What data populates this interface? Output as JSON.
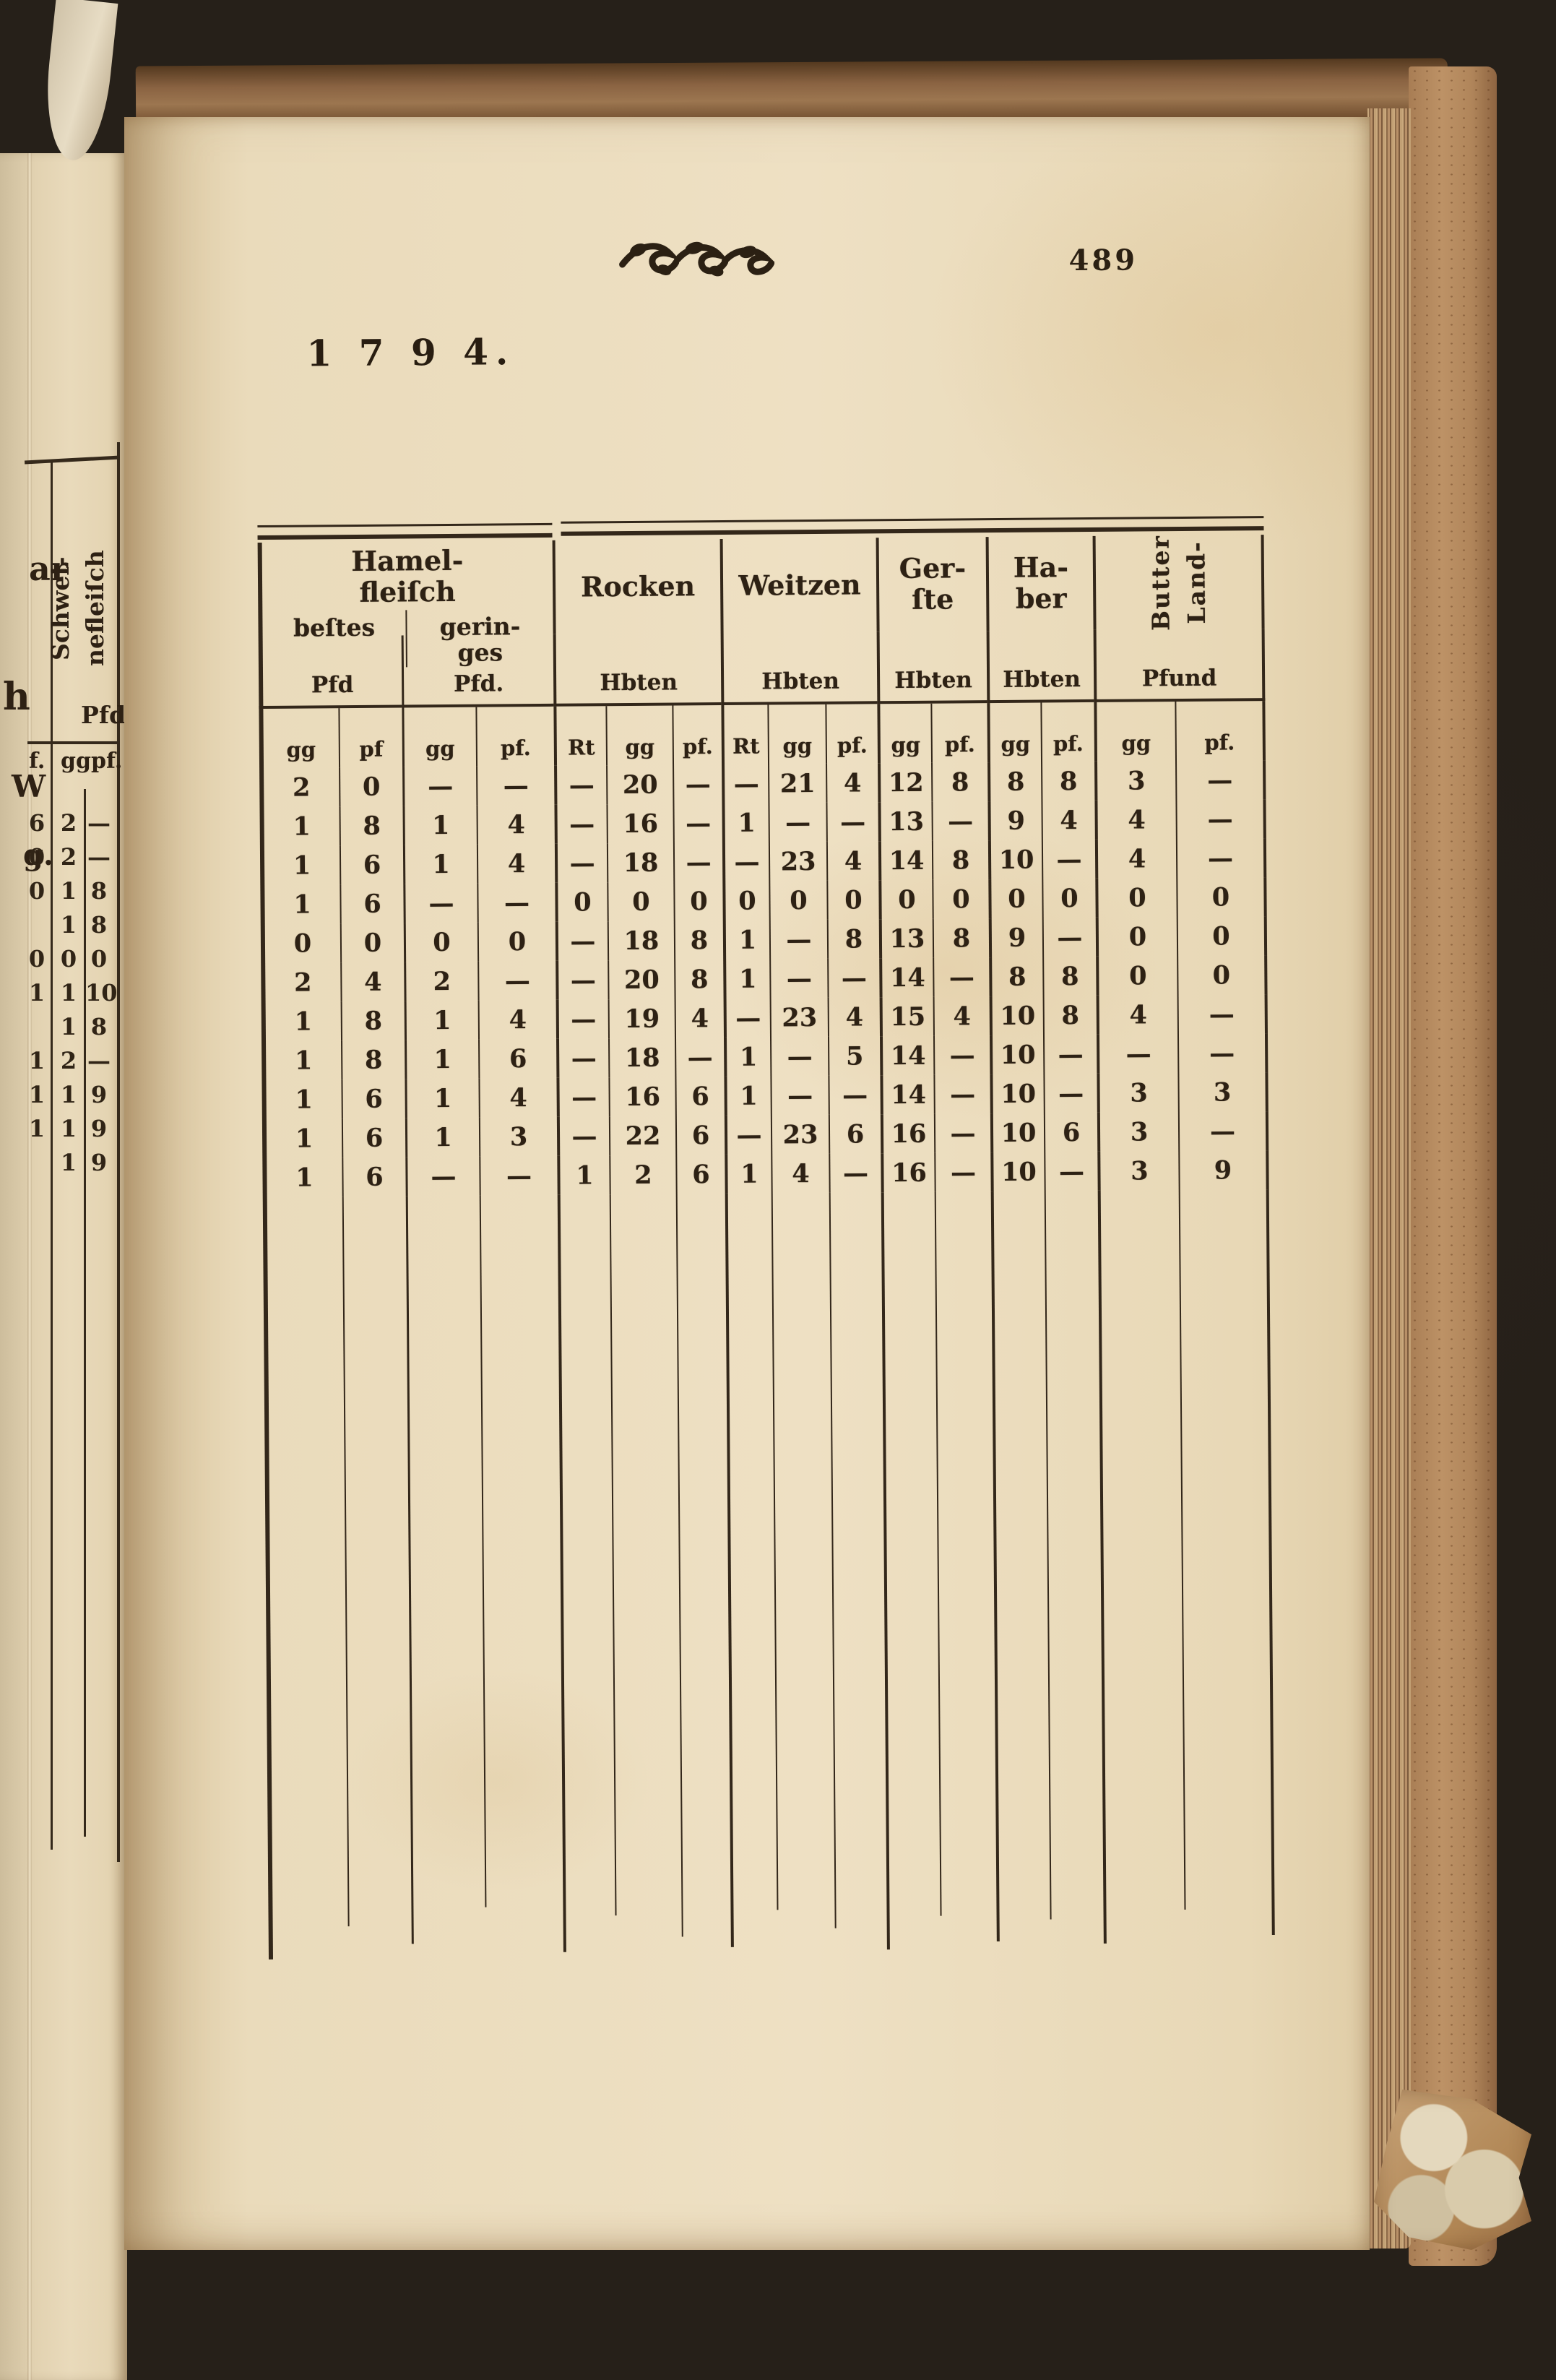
{
  "page": {
    "number": "489",
    "year": "1 7 9 4."
  },
  "ornament": {
    "name": "floral-vignette"
  },
  "colors": {
    "paper": "#eadbbb",
    "ink": "#2d2114",
    "cover": "#8a6342",
    "background": "#262019"
  },
  "table": {
    "groups": [
      {
        "label_lines": [
          "Hamel-",
          "fleiſch"
        ],
        "subgroups": [
          {
            "label_lines": [
              "beſtes"
            ],
            "unit": "Pfd",
            "cols": [
              "gg",
              "pf"
            ]
          },
          {
            "label_lines": [
              "gerin-",
              "ges"
            ],
            "unit": "Pfd.",
            "cols": [
              "gg",
              "pf."
            ]
          }
        ]
      },
      {
        "label_lines": [
          "Rocken"
        ],
        "unit": "Hbten",
        "cols": [
          "Rt",
          "gg",
          "pf."
        ]
      },
      {
        "label_lines": [
          "Weitzen"
        ],
        "unit": "Hbten",
        "cols": [
          "Rt",
          "gg",
          "pf."
        ]
      },
      {
        "label_lines": [
          "Ger-",
          "ſte"
        ],
        "unit": "Hbten",
        "cols": [
          "gg",
          "pf."
        ]
      },
      {
        "label_lines": [
          "Ha-",
          "ber"
        ],
        "unit": "Hbten",
        "cols": [
          "gg",
          "pf."
        ]
      },
      {
        "label_lines": [
          "Land-",
          "Butter"
        ],
        "rotated": true,
        "unit": "Pfund",
        "cols": [
          "gg",
          "pf."
        ]
      }
    ],
    "units_row": [
      "Pfd",
      "Pfd.",
      "Hbten",
      "Hbten",
      "Hbten",
      "Hbten",
      "Pfund"
    ],
    "subcols": [
      "gg",
      "pf",
      "gg",
      "pf.",
      "Rt",
      "gg",
      "pf.",
      "Rt",
      "gg",
      "pf.",
      "gg",
      "pf.",
      "gg",
      "pf.",
      "gg",
      "pf."
    ],
    "rows": [
      [
        "2",
        "0",
        "—",
        "—",
        "—",
        "20",
        "—",
        "—",
        "21",
        "4",
        "12",
        "8",
        "8",
        "8",
        "3",
        "—"
      ],
      [
        "1",
        "8",
        "1",
        "4",
        "—",
        "16",
        "—",
        "1",
        "—",
        "—",
        "13",
        "—",
        "9",
        "4",
        "4",
        "—"
      ],
      [
        "1",
        "6",
        "1",
        "4",
        "—",
        "18",
        "—",
        "—",
        "23",
        "4",
        "14",
        "8",
        "10",
        "—",
        "4",
        "—"
      ],
      [
        "1",
        "6",
        "—",
        "—",
        "0",
        "0",
        "0",
        "0",
        "0",
        "0",
        "0",
        "0",
        "0",
        "0",
        "0",
        "0"
      ],
      [
        "0",
        "0",
        "0",
        "0",
        "—",
        "18",
        "8",
        "1",
        "—",
        "8",
        "13",
        "8",
        "9",
        "—",
        "0",
        "0"
      ],
      [
        "2",
        "4",
        "2",
        "—",
        "—",
        "20",
        "8",
        "1",
        "—",
        "—",
        "14",
        "—",
        "8",
        "8",
        "0",
        "0"
      ],
      [
        "1",
        "8",
        "1",
        "4",
        "—",
        "19",
        "4",
        "—",
        "23",
        "4",
        "15",
        "4",
        "10",
        "8",
        "4",
        "—"
      ],
      [
        "1",
        "8",
        "1",
        "6",
        "—",
        "18",
        "—",
        "1",
        "—",
        "5",
        "14",
        "—",
        "10",
        "—",
        "—",
        "—"
      ],
      [
        "1",
        "6",
        "1",
        "4",
        "—",
        "16",
        "6",
        "1",
        "—",
        "—",
        "14",
        "—",
        "10",
        "—",
        "3",
        "3"
      ],
      [
        "1",
        "6",
        "1",
        "3",
        "—",
        "22",
        "6",
        "—",
        "23",
        "6",
        "16",
        "—",
        "10",
        "6",
        "3",
        "—"
      ],
      [
        "1",
        "6",
        "—",
        "—",
        "1",
        "2",
        "6",
        "1",
        "4",
        "—",
        "16",
        "—",
        "10",
        "—",
        "3",
        "9"
      ]
    ]
  },
  "left_page": {
    "fragments": [
      "ar",
      "h",
      "W",
      "g."
    ],
    "rotated_header_lines": [
      "Schwei-",
      "nefleiſch"
    ],
    "unit": "Pfd.",
    "col_headers": [
      "f.",
      "gg",
      "pf."
    ],
    "rows": [
      [
        "6",
        "2",
        "—"
      ],
      [
        "0",
        "2",
        "—"
      ],
      [
        "0",
        "1",
        "8"
      ],
      [
        "",
        "1",
        "8"
      ],
      [
        "0",
        "0",
        "0"
      ],
      [
        "1",
        "1",
        "10"
      ],
      [
        "",
        "1",
        "8"
      ],
      [
        "1",
        "2",
        "—"
      ],
      [
        "1",
        "1",
        "9"
      ],
      [
        "1",
        "1",
        "9"
      ],
      [
        "",
        "1",
        "9"
      ]
    ]
  }
}
